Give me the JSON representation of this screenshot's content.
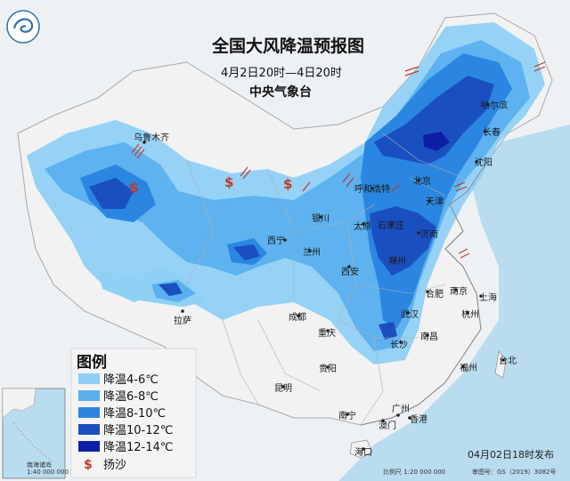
{
  "title": "全国大风降温预报图",
  "subtitle": "4月2日20时—4日20时",
  "org": "中央气象台",
  "legend": {
    "title": "图例",
    "items": [
      {
        "label": "降温4-6℃",
        "color": "#8fd0f5"
      },
      {
        "label": "降温6-8℃",
        "color": "#5ab0ee"
      },
      {
        "label": "降温8-10℃",
        "color": "#2a86e0"
      },
      {
        "label": "降温10-12℃",
        "color": "#1a4fc0"
      },
      {
        "label": "降温12-14℃",
        "color": "#0c1fa6"
      },
      {
        "label": "扬沙",
        "color": "#c0392b"
      }
    ]
  },
  "cities": {
    "wulumuqi": "乌鲁木齐",
    "haerbin": "哈尔滨",
    "changchun": "长春",
    "shenyang": "沈阳",
    "huhehaote": "呼和浩特",
    "beijing": "北京",
    "tianjin": "天津",
    "shijiazhuang": "石家庄",
    "taiyuan": "太原",
    "jinan": "济南",
    "yinchuan": "银川",
    "xining": "西宁",
    "lanzhou": "兰州",
    "zhengzhou": "郑州",
    "xian": "西安",
    "hefei": "合肥",
    "nanjing": "南京",
    "shanghai": "上海",
    "hangzhou": "杭州",
    "wuhan": "武汉",
    "chengdu": "成都",
    "chongqing": "重庆",
    "changsha": "长沙",
    "nanchang": "南昌",
    "fuzhou": "福州",
    "taibei": "台北",
    "lasa": "拉萨",
    "guiyang": "贵阳",
    "kunming": "昆明",
    "nanning": "南宁",
    "guangzhou": "广州",
    "xianggang": "香港",
    "aomen": "澳门",
    "haikou": "海口"
  },
  "footer": {
    "scale": "比例尺 1:20 000 000",
    "review": "审图号：GS（2019）3082号",
    "published": "04月02日18时发布",
    "inset_label": "南海诸岛",
    "inset_scale": "1:40 000 000"
  },
  "colors": {
    "sea": "#b8dcee",
    "land": "#f3f3f3",
    "border": "#9a9a9a",
    "sandstorm": "#c0392b"
  },
  "icons": [
    "logo-icon",
    "sandstorm-icon",
    "wind-barb-icon"
  ]
}
